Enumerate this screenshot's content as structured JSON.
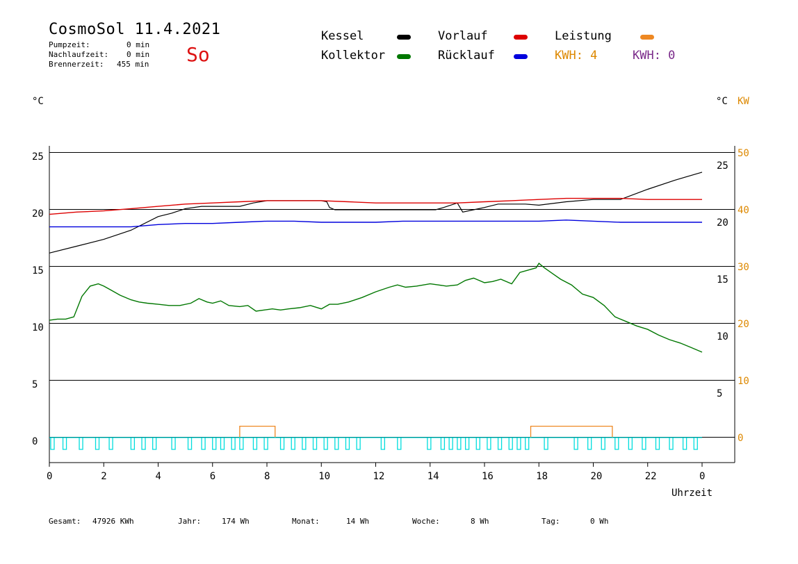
{
  "header": {
    "title": "CosmoSol 11.4.2021",
    "day": "So",
    "stats": [
      {
        "label": "Pumpzeit:",
        "value": "0 min"
      },
      {
        "label": "Nachlaufzeit:",
        "value": "0 min"
      },
      {
        "label": "Brennerzeit:",
        "value": "455 min"
      }
    ]
  },
  "legend": {
    "kessel": "Kessel",
    "vorlauf": "Vorlauf",
    "leistung": "Leistung",
    "kollektor": "Kollektor",
    "ruecklauf": "Rücklauf",
    "kwh_orange": "KWH: 4",
    "kwh_purple": "KWH: 0"
  },
  "colors": {
    "kessel": "#000000",
    "vorlauf": "#dd0000",
    "leistung": "#ee8822",
    "kollektor": "#007700",
    "ruecklauf": "#0000dd",
    "purple": "#7a2a8a",
    "pump": "#00dddd",
    "kw": "#dd8800"
  },
  "axes": {
    "left_unit": "°C",
    "right_unit": "°C",
    "right_unit2": "KW",
    "xlabel": "Uhrzeit"
  },
  "footer": [
    {
      "label": "Gesamt:",
      "value": "47926 KWh"
    },
    {
      "label": "Jahr:",
      "value": "174 Wh"
    },
    {
      "label": "Monat:",
      "value": "14 Wh"
    },
    {
      "label": "Woche:",
      "value": "8 Wh"
    },
    {
      "label": "Tag:",
      "value": "0 Wh"
    }
  ],
  "chart_data": {
    "type": "line",
    "xlim": [
      0,
      24
    ],
    "x_ticks": [
      "0",
      "2",
      "4",
      "6",
      "8",
      "10",
      "12",
      "14",
      "16",
      "18",
      "20",
      "22",
      "0"
    ],
    "left_ticks": [
      "25",
      "20",
      "15",
      "10",
      "5",
      "0"
    ],
    "right_ticks_c": [
      "25",
      "20",
      "15",
      "10",
      "5"
    ],
    "right_ticks_kw": [
      "50",
      "40",
      "30",
      "20",
      "10",
      "0"
    ],
    "series": [
      {
        "name": "Kessel",
        "key": "kessel",
        "x": [
          0,
          1,
          2,
          3,
          4,
          4.5,
          5,
          5.6,
          6,
          7,
          7.5,
          8,
          9,
          10,
          10.2,
          10.3,
          10.5,
          11,
          12,
          13,
          14,
          14.2,
          14.5,
          15,
          15.2,
          15.6,
          16,
          16.5,
          17,
          17.5,
          18,
          19,
          20,
          21,
          22,
          23,
          24
        ],
        "y": [
          16.2,
          16.8,
          17.4,
          18.2,
          19.4,
          19.7,
          20.1,
          20.3,
          20.3,
          20.3,
          20.6,
          20.8,
          20.8,
          20.8,
          20.7,
          20.2,
          20.0,
          20.0,
          20.0,
          20.0,
          20.0,
          20.0,
          20.2,
          20.6,
          19.8,
          20.0,
          20.2,
          20.5,
          20.5,
          20.5,
          20.4,
          20.7,
          20.9,
          20.9,
          21.8,
          22.6,
          23.3
        ]
      },
      {
        "name": "Vorlauf",
        "key": "vorlauf",
        "x": [
          0,
          1,
          2,
          3,
          4,
          5,
          6,
          7,
          8,
          9,
          10,
          11,
          12,
          13,
          14,
          15,
          16,
          17,
          18,
          19,
          20,
          21,
          22,
          23,
          24
        ],
        "y": [
          19.6,
          19.8,
          19.9,
          20.1,
          20.3,
          20.5,
          20.6,
          20.7,
          20.8,
          20.8,
          20.8,
          20.7,
          20.6,
          20.6,
          20.6,
          20.6,
          20.7,
          20.8,
          20.9,
          21.0,
          21.0,
          21.0,
          20.9,
          20.9,
          20.9
        ]
      },
      {
        "name": "Rücklauf",
        "key": "ruecklauf",
        "x": [
          0,
          1,
          2,
          3,
          4,
          5,
          6,
          7,
          8,
          9,
          10,
          11,
          12,
          13,
          14,
          15,
          16,
          17,
          18,
          19,
          20,
          21,
          22,
          23,
          24
        ],
        "y": [
          18.5,
          18.5,
          18.5,
          18.5,
          18.7,
          18.8,
          18.8,
          18.9,
          19.0,
          19.0,
          18.9,
          18.9,
          18.9,
          19.0,
          19.0,
          19.0,
          19.0,
          19.0,
          19.0,
          19.1,
          19.0,
          18.9,
          18.9,
          18.9,
          18.9
        ]
      },
      {
        "name": "Kollektor",
        "key": "kollektor",
        "x": [
          0,
          0.3,
          0.6,
          0.9,
          1.2,
          1.5,
          1.8,
          2.0,
          2.3,
          2.6,
          3.0,
          3.3,
          3.6,
          4.0,
          4.4,
          4.8,
          5.2,
          5.5,
          5.8,
          6.0,
          6.3,
          6.6,
          7.0,
          7.3,
          7.6,
          7.9,
          8.2,
          8.5,
          8.8,
          9.2,
          9.6,
          10.0,
          10.3,
          10.6,
          11.0,
          11.5,
          12.0,
          12.5,
          12.8,
          13.1,
          13.5,
          14.0,
          14.3,
          14.6,
          15.0,
          15.3,
          15.6,
          16.0,
          16.3,
          16.6,
          17.0,
          17.3,
          17.6,
          17.9,
          18.0,
          18.2,
          18.5,
          18.8,
          19.2,
          19.6,
          20.0,
          20.4,
          20.8,
          21.2,
          21.6,
          22.0,
          22.4,
          22.8,
          23.2,
          23.6,
          24.0
        ],
        "y": [
          10.3,
          10.4,
          10.4,
          10.6,
          12.4,
          13.3,
          13.5,
          13.3,
          12.9,
          12.5,
          12.1,
          11.9,
          11.8,
          11.7,
          11.6,
          11.6,
          11.8,
          12.2,
          11.9,
          11.8,
          12.0,
          11.6,
          11.5,
          11.6,
          11.1,
          11.2,
          11.3,
          11.2,
          11.3,
          11.4,
          11.6,
          11.3,
          11.7,
          11.7,
          11.9,
          12.3,
          12.8,
          13.2,
          13.4,
          13.2,
          13.3,
          13.5,
          13.4,
          13.3,
          13.4,
          13.8,
          14.0,
          13.6,
          13.7,
          13.9,
          13.5,
          14.5,
          14.7,
          14.9,
          15.3,
          14.9,
          14.4,
          13.9,
          13.4,
          12.6,
          12.3,
          11.6,
          10.6,
          10.2,
          9.8,
          9.5,
          9.0,
          8.6,
          8.3,
          7.9,
          7.5
        ]
      }
    ],
    "leistung_kw": [
      {
        "from": 7.0,
        "to": 8.3,
        "kw": 2
      },
      {
        "from": 17.7,
        "to": 20.7,
        "kw": 2
      }
    ],
    "pump_pulses_h": [
      0.05,
      0.5,
      1.1,
      1.7,
      2.2,
      3.0,
      3.4,
      3.8,
      4.5,
      5.1,
      5.6,
      6.0,
      6.3,
      6.7,
      7.0,
      7.5,
      7.9,
      8.5,
      8.9,
      9.3,
      9.7,
      10.1,
      10.5,
      10.9,
      11.3,
      12.2,
      12.8,
      13.9,
      14.4,
      14.7,
      15.0,
      15.3,
      15.7,
      16.1,
      16.5,
      16.9,
      17.2,
      17.5,
      18.2,
      19.3,
      19.8,
      20.3,
      20.8,
      21.3,
      21.8,
      22.3,
      22.8,
      23.3,
      23.7
    ]
  }
}
